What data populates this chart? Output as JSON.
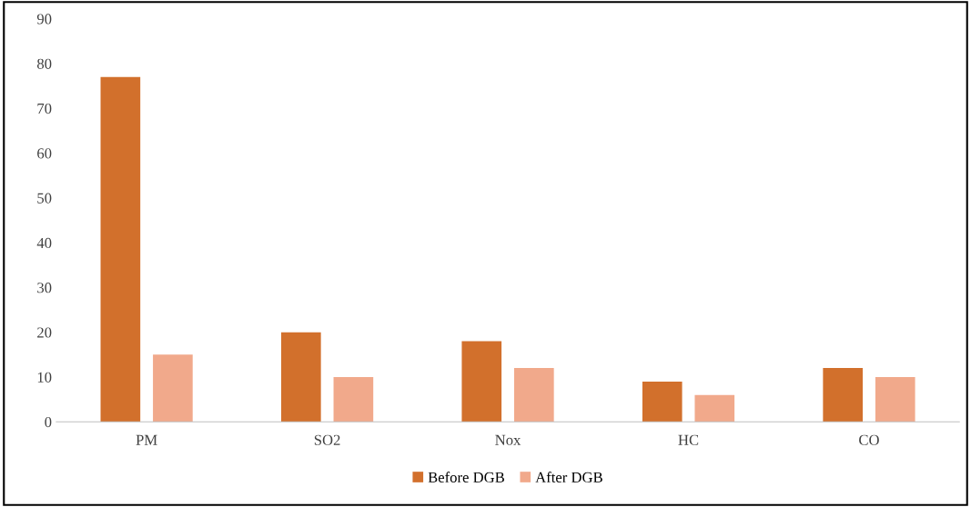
{
  "chart_data": {
    "type": "bar",
    "categories": [
      "PM",
      "SO2",
      "Nox",
      "HC",
      "CO"
    ],
    "series": [
      {
        "name": "Before DGB",
        "color": "#d2702c",
        "values": [
          77,
          20,
          18,
          9,
          12
        ]
      },
      {
        "name": "After DGB",
        "color": "#f1a98b",
        "values": [
          15,
          10,
          12,
          6,
          10
        ]
      }
    ],
    "ylim": [
      0,
      90
    ],
    "yticks": [
      0,
      10,
      20,
      30,
      40,
      50,
      60,
      70,
      80,
      90
    ],
    "grid": false,
    "legend": "bottom"
  }
}
